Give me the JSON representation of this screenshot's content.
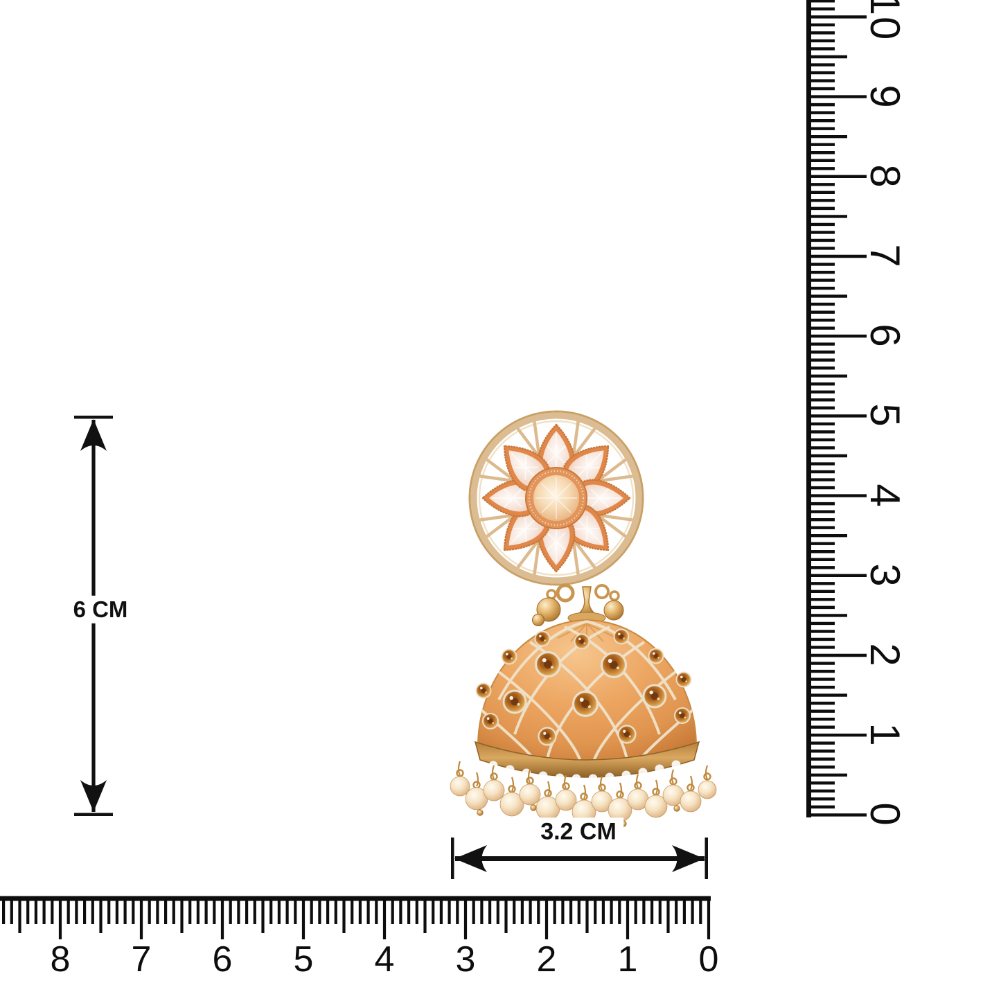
{
  "rulers": {
    "vertical_numbers": [
      "10",
      "9",
      "8",
      "7",
      "6",
      "5",
      "4",
      "3",
      "2",
      "1",
      "0"
    ],
    "horizontal_numbers": [
      "8",
      "7",
      "6",
      "5",
      "4",
      "3",
      "2",
      "1",
      "0"
    ]
  },
  "dimension_labels": {
    "height": "6 CM",
    "width": "3.2 CM"
  },
  "palette": {
    "ruler": "#0d0d0d",
    "dim": "#111111",
    "gold": "#C9954F",
    "gold_dark": "#A8762F",
    "disc_gold": "#DCBC92",
    "petal_bezel": "#E2874A",
    "petal_gem": "#F6E4DA",
    "center_gem": "#F2D0A8",
    "dome": "#E9A362",
    "dome_dark": "#C27432",
    "lattice": "#EFE3CB",
    "crystal_amber": "#A55E1A",
    "pearl": "#F6E3C4"
  }
}
